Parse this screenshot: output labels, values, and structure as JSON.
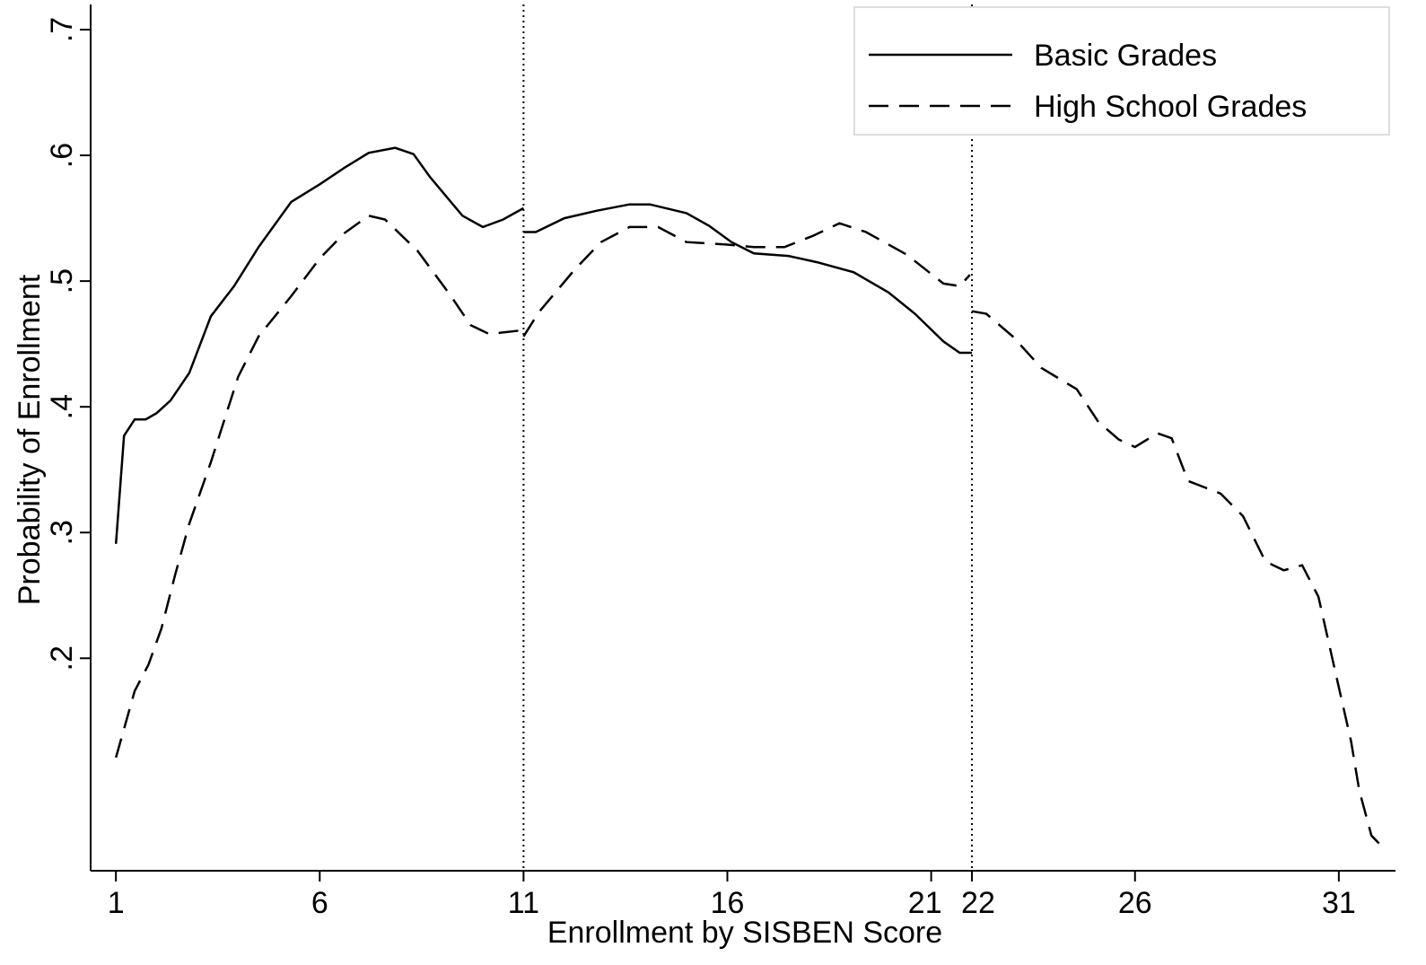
{
  "chart_data": {
    "type": "line",
    "xlabel": "Enrollment by SISBEN Score",
    "ylabel": "Probability of Enrollment",
    "xlim": [
      0.38,
      32.39
    ],
    "ylim": [
      0.031,
      0.72
    ],
    "xticks": [
      1,
      6,
      11,
      16,
      21,
      22,
      26,
      31
    ],
    "yticks": [
      {
        "value": 0.2,
        "label": ".2"
      },
      {
        "value": 0.3,
        "label": ".3"
      },
      {
        "value": 0.4,
        "label": ".4"
      },
      {
        "value": 0.5,
        "label": ".5"
      },
      {
        "value": 0.6,
        "label": ".6"
      },
      {
        "value": 0.7,
        "label": ".7"
      }
    ],
    "vlines": [
      11,
      22
    ],
    "legend": "upper right",
    "series": [
      {
        "name": "Basic Grades",
        "color": "#000000",
        "dash": "solid",
        "x": [
          1,
          1.2,
          1.46,
          1.73,
          2.0,
          2.34,
          2.8,
          3.33,
          3.9,
          4.5,
          5.3,
          6,
          6.6,
          7.2,
          7.85,
          8.3,
          8.7,
          9.5,
          10,
          10.5,
          11,
          null,
          11,
          11.3,
          12,
          12.8,
          13.6,
          14.1,
          15,
          15.55,
          16.1,
          16.65,
          17.5,
          18.2,
          19.1,
          19.95,
          20.6,
          21.3,
          21.7,
          22
        ],
        "values": [
          0.291,
          0.377,
          0.39,
          0.39,
          0.395,
          0.405,
          0.427,
          0.472,
          0.496,
          0.527,
          0.563,
          0.577,
          0.59,
          0.602,
          0.606,
          0.601,
          0.583,
          0.552,
          0.543,
          0.549,
          0.558,
          null,
          0.539,
          0.539,
          0.55,
          0.556,
          0.561,
          0.561,
          0.554,
          0.544,
          0.531,
          0.522,
          0.52,
          0.515,
          0.507,
          0.491,
          0.474,
          0.452,
          0.443,
          0.443
        ]
      },
      {
        "name": "High School Grades",
        "color": "#000000",
        "dash": "dashed",
        "x": [
          1,
          1.46,
          1.8,
          2.12,
          2.45,
          2.8,
          3.33,
          4,
          4.5,
          5.3,
          6,
          6.6,
          7.2,
          7.6,
          8.4,
          9.2,
          9.7,
          10.15,
          11,
          null,
          11,
          11.37,
          12.25,
          12.9,
          13.6,
          14.3,
          15,
          16,
          16.65,
          17.4,
          18.1,
          18.75,
          19.4,
          20.4,
          21.3,
          21.7,
          21.95,
          null,
          22,
          22.35,
          23,
          23.7,
          24.57,
          25.1,
          25.6,
          26,
          26.55,
          26.9,
          27.3,
          28.1,
          28.65,
          29.2,
          29.65,
          30.1,
          30.5,
          30.95,
          31.3,
          31.5,
          31.8,
          32.1
        ],
        "values": [
          0.121,
          0.174,
          0.195,
          0.224,
          0.266,
          0.307,
          0.356,
          0.424,
          0.456,
          0.488,
          0.518,
          0.538,
          0.552,
          0.549,
          0.524,
          0.489,
          0.465,
          0.458,
          0.461,
          null,
          0.456,
          0.475,
          0.509,
          0.531,
          0.543,
          0.543,
          0.531,
          0.529,
          0.527,
          0.527,
          0.536,
          0.546,
          0.539,
          0.521,
          0.498,
          0.496,
          0.505,
          null,
          0.476,
          0.474,
          0.456,
          0.431,
          0.414,
          0.388,
          0.374,
          0.368,
          0.379,
          0.375,
          0.341,
          0.331,
          0.313,
          0.277,
          0.27,
          0.274,
          0.249,
          0.184,
          0.134,
          0.095,
          0.059,
          0.049
        ]
      }
    ]
  }
}
